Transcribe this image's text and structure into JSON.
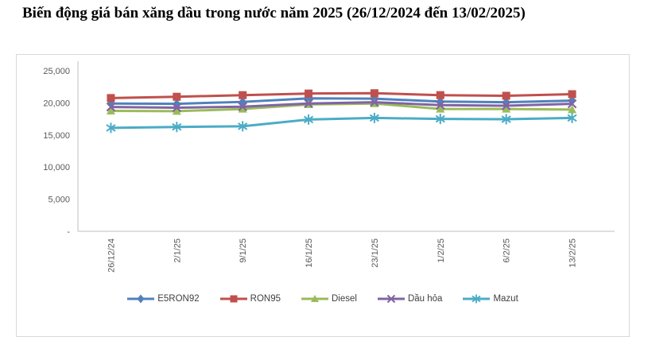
{
  "page": {
    "title": "Biến động giá bán xăng dầu trong nước năm 2025 (26/12/2024 đến 13/02/2025)"
  },
  "chart_data": {
    "type": "line",
    "title": "Biến động giá bán xăng dầu trong nước năm 2025 (26/12/2024 đến 13/02/2025)",
    "xlabel": "",
    "ylabel": "",
    "categories": [
      "26/12/24",
      "2/1/25",
      "9/1/25",
      "16/1/25",
      "23/1/25",
      "1/2/25",
      "6/2/25",
      "13/2/25"
    ],
    "series": [
      {
        "name": "E5RON92",
        "color": "#4F81BD",
        "marker": "diamond",
        "values": [
          19900,
          19850,
          20150,
          20700,
          20650,
          20200,
          20100,
          20350
        ]
      },
      {
        "name": "RON95",
        "color": "#C0504D",
        "marker": "square",
        "values": [
          20750,
          20950,
          21200,
          21450,
          21500,
          21200,
          21100,
          21350
        ]
      },
      {
        "name": "Diesel",
        "color": "#9BBB59",
        "marker": "triangle",
        "values": [
          18750,
          18700,
          19050,
          19750,
          19900,
          19050,
          19050,
          18950
        ]
      },
      {
        "name": "Dầu hỏa",
        "color": "#8064A2",
        "marker": "x",
        "values": [
          19350,
          19250,
          19400,
          19900,
          20100,
          19650,
          19550,
          19850
        ]
      },
      {
        "name": "Mazut",
        "color": "#4BACC6",
        "marker": "asterisk",
        "values": [
          16100,
          16250,
          16350,
          17400,
          17650,
          17500,
          17450,
          17650
        ]
      }
    ],
    "ylim": [
      0,
      25000
    ],
    "ytick_step": 5000,
    "ytick_labels": [
      "-",
      "5,000",
      "10,000",
      "15,000",
      "20,000",
      "25,000"
    ],
    "grid": false,
    "legend_position": "bottom",
    "axis_color": "#bfbfbf",
    "tick_label_color": "#595959"
  }
}
